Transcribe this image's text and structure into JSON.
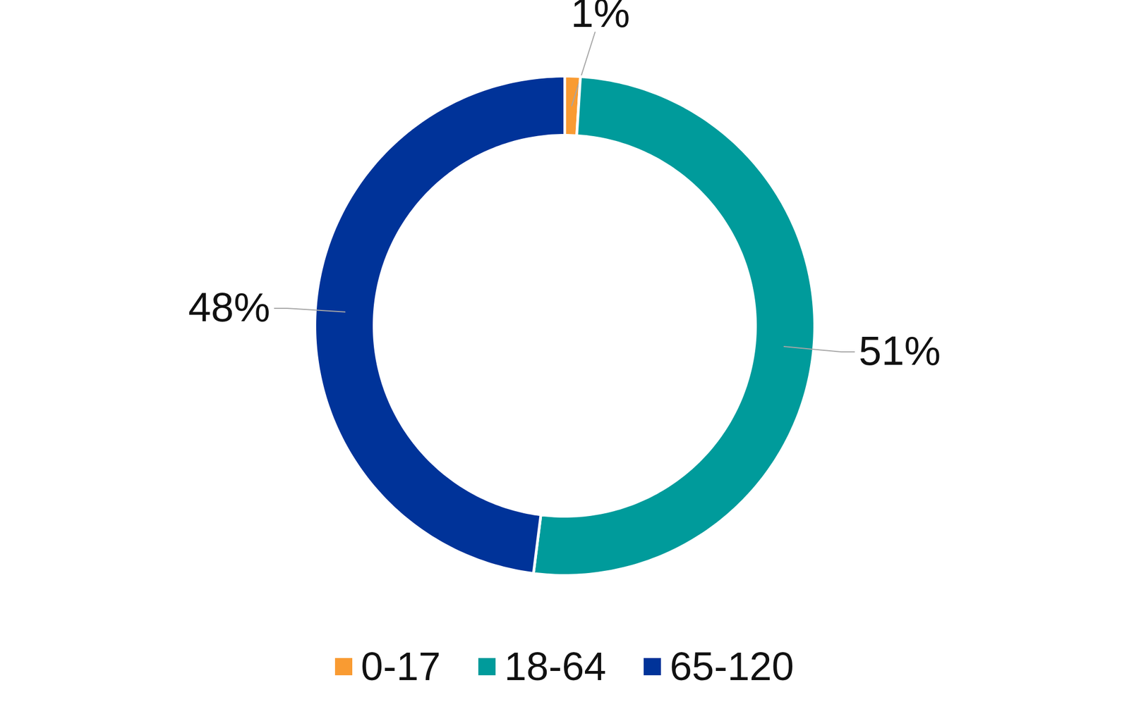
{
  "chart_data": {
    "type": "pie",
    "donut": true,
    "categories": [
      "0-17",
      "18-64",
      "65-120"
    ],
    "values": [
      1,
      51,
      48
    ],
    "value_labels": [
      "1%",
      "51%",
      "48%"
    ],
    "colors": [
      "#f99b32",
      "#009b9b",
      "#003399"
    ],
    "data_labels": true,
    "legend": "bottom"
  }
}
